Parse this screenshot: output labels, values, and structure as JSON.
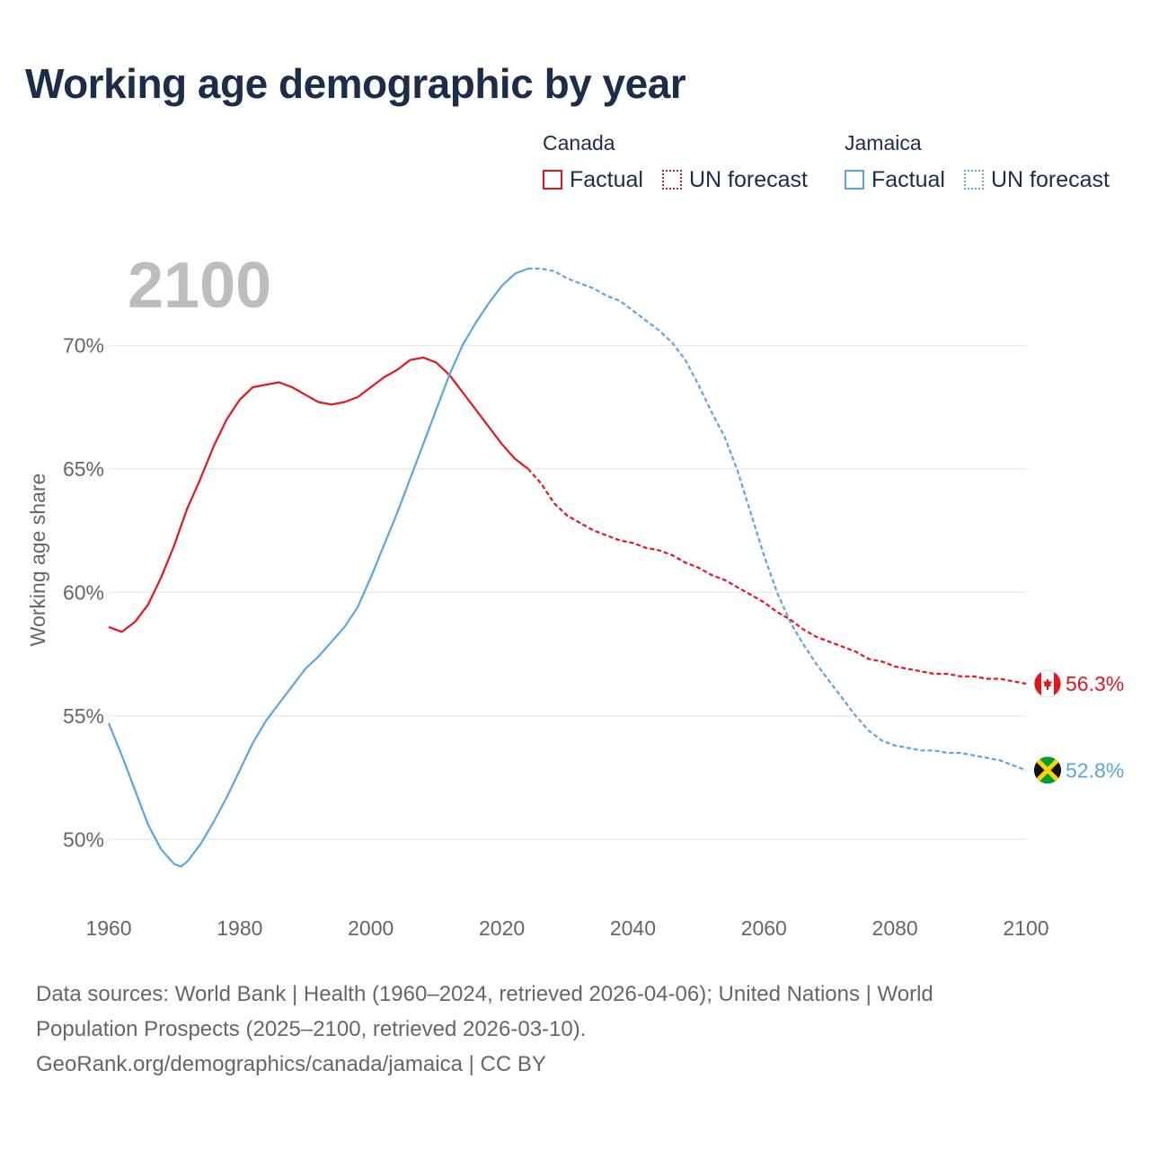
{
  "title": "Working age demographic by year",
  "legend": {
    "groups": [
      {
        "name": "Canada",
        "color": "#e8141c",
        "factual_label": "Factual",
        "forecast_label": "UN forecast"
      },
      {
        "name": "Jamaica",
        "color": "#5aa5e6",
        "factual_label": "Factual",
        "forecast_label": "UN forecast"
      }
    ]
  },
  "footer": {
    "line1": "Data sources: World Bank | Health (1960–2024, retrieved 2026-04-06); United Nations | World",
    "line2": "Population Prospects (2025–2100, retrieved 2026-03-10).",
    "line3": "GeoRank.org/demographics/canada/jamaica | CC BY"
  },
  "chart_data": {
    "type": "line",
    "title": "Working age demographic by year",
    "year_label": "2100",
    "xlabel": "",
    "ylabel": "Working age share",
    "xlim": [
      1960,
      2100
    ],
    "ylim": [
      47.5,
      73.5
    ],
    "x_ticks": [
      1960,
      1980,
      2000,
      2020,
      2040,
      2060,
      2080,
      2100
    ],
    "y_ticks": [
      {
        "value": 50,
        "label": "50%"
      },
      {
        "value": 55,
        "label": "55%"
      },
      {
        "value": 60,
        "label": "60%"
      },
      {
        "value": 65,
        "label": "65%"
      },
      {
        "value": 70,
        "label": "70%"
      }
    ],
    "factual_end_year": 2024,
    "series": [
      {
        "name": "Canada",
        "color": "#e8141c",
        "end_label": "56.3%",
        "flag": "canada-flag",
        "points": [
          [
            1960,
            58.6
          ],
          [
            1962,
            58.4
          ],
          [
            1964,
            58.8
          ],
          [
            1966,
            59.5
          ],
          [
            1968,
            60.6
          ],
          [
            1970,
            61.9
          ],
          [
            1972,
            63.4
          ],
          [
            1974,
            64.6
          ],
          [
            1976,
            65.9
          ],
          [
            1978,
            67.0
          ],
          [
            1980,
            67.8
          ],
          [
            1982,
            68.3
          ],
          [
            1984,
            68.4
          ],
          [
            1986,
            68.5
          ],
          [
            1988,
            68.3
          ],
          [
            1990,
            68.0
          ],
          [
            1992,
            67.7
          ],
          [
            1994,
            67.6
          ],
          [
            1996,
            67.7
          ],
          [
            1998,
            67.9
          ],
          [
            2000,
            68.3
          ],
          [
            2002,
            68.7
          ],
          [
            2004,
            69.0
          ],
          [
            2006,
            69.4
          ],
          [
            2008,
            69.5
          ],
          [
            2010,
            69.3
          ],
          [
            2012,
            68.8
          ],
          [
            2014,
            68.1
          ],
          [
            2016,
            67.4
          ],
          [
            2018,
            66.7
          ],
          [
            2020,
            66.0
          ],
          [
            2022,
            65.4
          ],
          [
            2024,
            65.0
          ],
          [
            2026,
            64.4
          ],
          [
            2028,
            63.6
          ],
          [
            2030,
            63.1
          ],
          [
            2032,
            62.8
          ],
          [
            2034,
            62.5
          ],
          [
            2036,
            62.3
          ],
          [
            2038,
            62.1
          ],
          [
            2040,
            62.0
          ],
          [
            2042,
            61.8
          ],
          [
            2044,
            61.7
          ],
          [
            2046,
            61.5
          ],
          [
            2048,
            61.2
          ],
          [
            2050,
            61.0
          ],
          [
            2052,
            60.7
          ],
          [
            2054,
            60.5
          ],
          [
            2056,
            60.2
          ],
          [
            2058,
            59.9
          ],
          [
            2060,
            59.6
          ],
          [
            2062,
            59.2
          ],
          [
            2064,
            58.9
          ],
          [
            2066,
            58.5
          ],
          [
            2068,
            58.2
          ],
          [
            2070,
            58.0
          ],
          [
            2072,
            57.8
          ],
          [
            2074,
            57.6
          ],
          [
            2076,
            57.3
          ],
          [
            2078,
            57.2
          ],
          [
            2080,
            57.0
          ],
          [
            2082,
            56.9
          ],
          [
            2084,
            56.8
          ],
          [
            2086,
            56.7
          ],
          [
            2088,
            56.7
          ],
          [
            2090,
            56.6
          ],
          [
            2092,
            56.6
          ],
          [
            2094,
            56.5
          ],
          [
            2096,
            56.5
          ],
          [
            2098,
            56.4
          ],
          [
            2100,
            56.3
          ]
        ]
      },
      {
        "name": "Jamaica",
        "color": "#5aa5e6",
        "end_label": "52.8%",
        "flag": "jamaica-flag",
        "points": [
          [
            1960,
            54.7
          ],
          [
            1962,
            53.4
          ],
          [
            1964,
            52.0
          ],
          [
            1966,
            50.6
          ],
          [
            1968,
            49.6
          ],
          [
            1970,
            49.0
          ],
          [
            1971,
            48.9
          ],
          [
            1972,
            49.1
          ],
          [
            1974,
            49.8
          ],
          [
            1976,
            50.7
          ],
          [
            1978,
            51.7
          ],
          [
            1980,
            52.8
          ],
          [
            1982,
            53.9
          ],
          [
            1984,
            54.8
          ],
          [
            1986,
            55.5
          ],
          [
            1988,
            56.2
          ],
          [
            1990,
            56.9
          ],
          [
            1992,
            57.4
          ],
          [
            1994,
            58.0
          ],
          [
            1996,
            58.6
          ],
          [
            1998,
            59.4
          ],
          [
            2000,
            60.6
          ],
          [
            2002,
            61.9
          ],
          [
            2004,
            63.2
          ],
          [
            2006,
            64.6
          ],
          [
            2008,
            66.0
          ],
          [
            2010,
            67.4
          ],
          [
            2012,
            68.8
          ],
          [
            2014,
            70.0
          ],
          [
            2016,
            70.9
          ],
          [
            2018,
            71.7
          ],
          [
            2020,
            72.4
          ],
          [
            2022,
            72.9
          ],
          [
            2024,
            73.1
          ],
          [
            2026,
            73.1
          ],
          [
            2028,
            73.0
          ],
          [
            2030,
            72.7
          ],
          [
            2032,
            72.5
          ],
          [
            2034,
            72.3
          ],
          [
            2036,
            72.0
          ],
          [
            2038,
            71.8
          ],
          [
            2040,
            71.4
          ],
          [
            2042,
            71.0
          ],
          [
            2044,
            70.6
          ],
          [
            2046,
            70.1
          ],
          [
            2048,
            69.4
          ],
          [
            2050,
            68.4
          ],
          [
            2052,
            67.3
          ],
          [
            2054,
            66.3
          ],
          [
            2056,
            64.9
          ],
          [
            2058,
            63.2
          ],
          [
            2060,
            61.5
          ],
          [
            2062,
            60.0
          ],
          [
            2064,
            58.8
          ],
          [
            2066,
            57.9
          ],
          [
            2068,
            57.1
          ],
          [
            2070,
            56.4
          ],
          [
            2072,
            55.7
          ],
          [
            2074,
            55.0
          ],
          [
            2076,
            54.4
          ],
          [
            2078,
            54.0
          ],
          [
            2080,
            53.8
          ],
          [
            2082,
            53.7
          ],
          [
            2084,
            53.6
          ],
          [
            2086,
            53.6
          ],
          [
            2088,
            53.5
          ],
          [
            2090,
            53.5
          ],
          [
            2092,
            53.4
          ],
          [
            2094,
            53.3
          ],
          [
            2096,
            53.2
          ],
          [
            2098,
            53.0
          ],
          [
            2100,
            52.8
          ]
        ]
      }
    ]
  }
}
